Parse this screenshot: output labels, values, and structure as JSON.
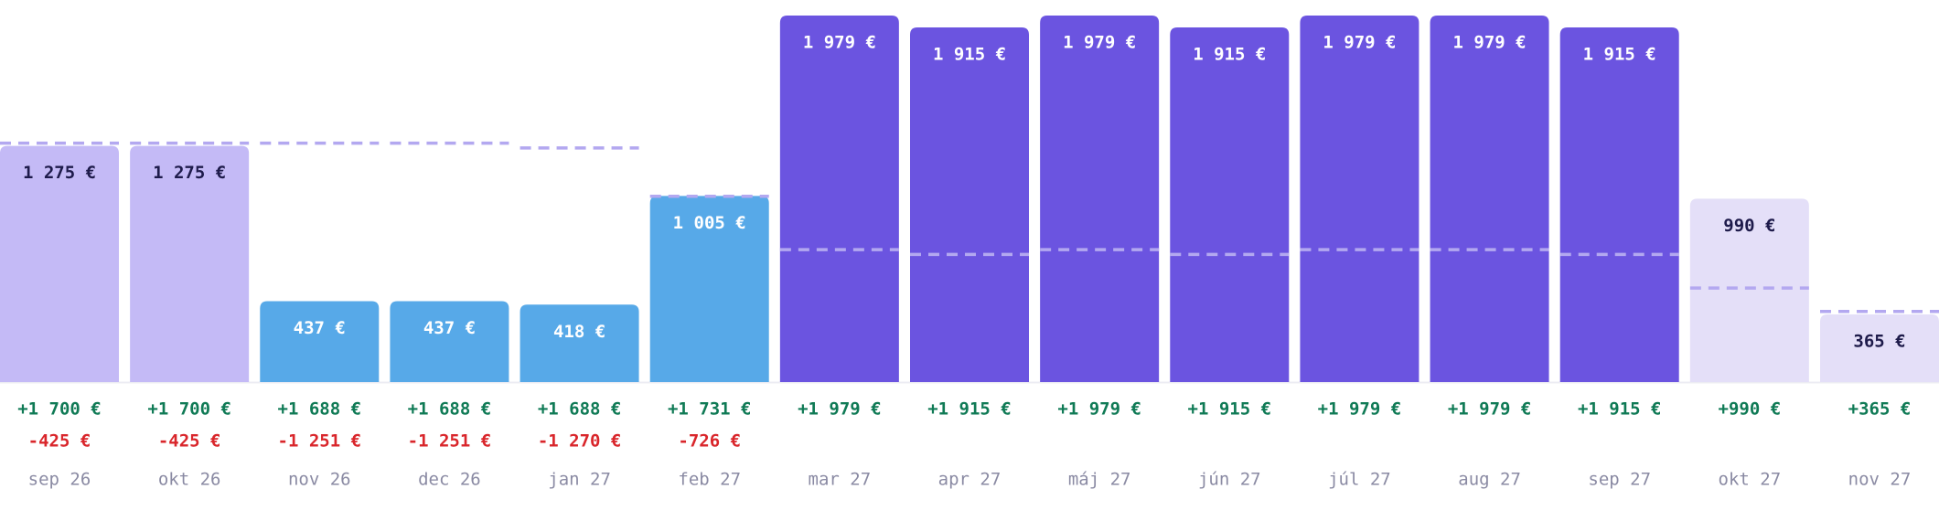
{
  "chart_data": {
    "type": "bar",
    "categories": [
      "sep 26",
      "okt 26",
      "nov 26",
      "dec 26",
      "jan 27",
      "feb 27",
      "mar 27",
      "apr 27",
      "máj 27",
      "jún 27",
      "júl 27",
      "aug 27",
      "sep 27",
      "okt 27",
      "nov 27"
    ],
    "values": [
      1275,
      1275,
      437,
      437,
      418,
      1005,
      1979,
      1915,
      1979,
      1915,
      1979,
      1979,
      1915,
      990,
      365
    ],
    "value_labels": [
      "1 275 €",
      "1 275 €",
      "437 €",
      "437 €",
      "418 €",
      "1 005 €",
      "1 979 €",
      "1 915 €",
      "1 979 €",
      "1 915 €",
      "1 979 €",
      "1 979 €",
      "1 915 €",
      "990 €",
      "365 €"
    ],
    "colors": [
      "#c4baf6",
      "#c4baf6",
      "#57a9e8",
      "#57a9e8",
      "#57a9e8",
      "#57a9e8",
      "#6b54e0",
      "#6b54e0",
      "#6b54e0",
      "#6b54e0",
      "#6b54e0",
      "#6b54e0",
      "#6b54e0",
      "#e4dff8",
      "#e4dff8"
    ],
    "label_colors": [
      "#1e1b4b",
      "#1e1b4b",
      "#ffffff",
      "#ffffff",
      "#ffffff",
      "#ffffff",
      "#ffffff",
      "#ffffff",
      "#ffffff",
      "#ffffff",
      "#ffffff",
      "#ffffff",
      "#ffffff",
      "#1e1b4b",
      "#1e1b4b"
    ],
    "reference_values": [
      1290,
      1290,
      1290,
      1290,
      1264,
      1003,
      715,
      689,
      715,
      689,
      715,
      715,
      689,
      508,
      381
    ],
    "reference_color": "#b3a8f0",
    "income": [
      1700,
      1700,
      1688,
      1688,
      1688,
      1731,
      1979,
      1915,
      1979,
      1915,
      1979,
      1979,
      1915,
      990,
      365
    ],
    "income_labels": [
      "+1 700 €",
      "+1 700 €",
      "+1 688 €",
      "+1 688 €",
      "+1 688 €",
      "+1 731 €",
      "+1 979 €",
      "+1 915 €",
      "+1 979 €",
      "+1 915 €",
      "+1 979 €",
      "+1 979 €",
      "+1 915 €",
      "+990 €",
      "+365 €"
    ],
    "expenses": [
      -425,
      -425,
      -1251,
      -1251,
      -1270,
      -726,
      null,
      null,
      null,
      null,
      null,
      null,
      null,
      null,
      null
    ],
    "expense_labels": [
      "-425 €",
      "-425 €",
      "-1 251 €",
      "-1 251 €",
      "-1 270 €",
      "-726 €",
      null,
      null,
      null,
      null,
      null,
      null,
      null,
      null,
      null
    ],
    "income_color": "#0f7a55",
    "expense_color": "#d9262b"
  }
}
